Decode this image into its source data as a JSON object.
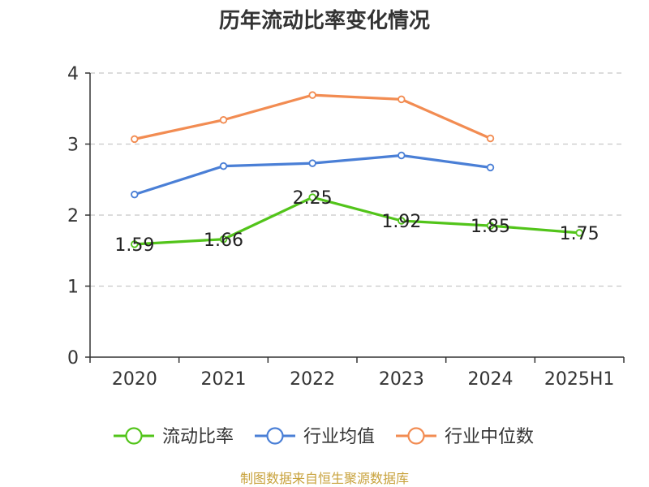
{
  "chart_data": {
    "type": "line",
    "title": "历年流动比率变化情况",
    "categories": [
      "2020",
      "2021",
      "2022",
      "2023",
      "2024",
      "2025H1"
    ],
    "ylim": [
      0,
      4
    ],
    "yticks": [
      "0",
      "1",
      "2",
      "3",
      "4"
    ],
    "grid": true,
    "legend_position": "bottom",
    "series": [
      {
        "name": "流动比率",
        "color": "#52c41a",
        "values": [
          1.59,
          1.66,
          2.25,
          1.92,
          1.85,
          1.75
        ],
        "labels": [
          "1.59",
          "1.66",
          "2.25",
          "1.92",
          "1.85",
          "1.75"
        ]
      },
      {
        "name": "行业均值",
        "color": "#4a7fd6",
        "values": [
          2.29,
          2.69,
          2.73,
          2.84,
          2.67,
          null
        ]
      },
      {
        "name": "行业中位数",
        "color": "#f28c52",
        "values": [
          3.07,
          3.34,
          3.69,
          3.63,
          3.08,
          null
        ]
      }
    ]
  },
  "source": "制图数据来自恒生聚源数据库"
}
